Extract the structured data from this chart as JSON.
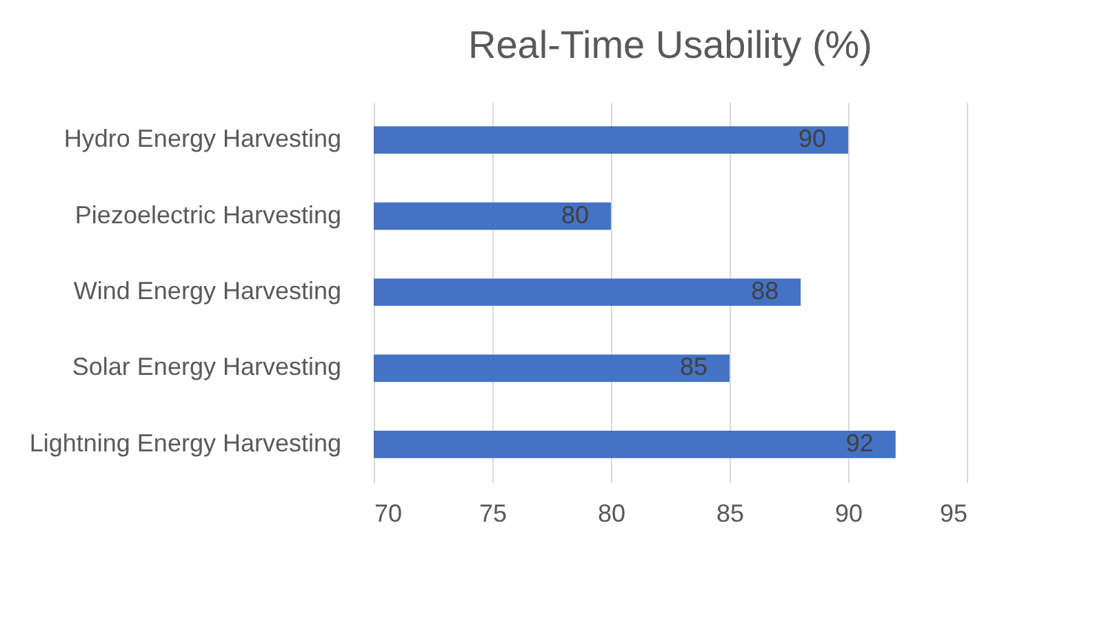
{
  "chart_data": {
    "type": "bar",
    "orientation": "horizontal",
    "title": "Real-Time Usability (%)",
    "categories": [
      "Hydro Energy Harvesting",
      "Piezoelectric Harvesting",
      "Wind Energy Harvesting",
      "Solar Energy Harvesting",
      "Lightning Energy Harvesting"
    ],
    "values": [
      90,
      80,
      88,
      85,
      92
    ],
    "color": "#4472c4",
    "xlim": [
      70,
      95
    ],
    "xticks": [
      70,
      75,
      80,
      85,
      90,
      95
    ],
    "grid": "x",
    "data_labels": true
  }
}
